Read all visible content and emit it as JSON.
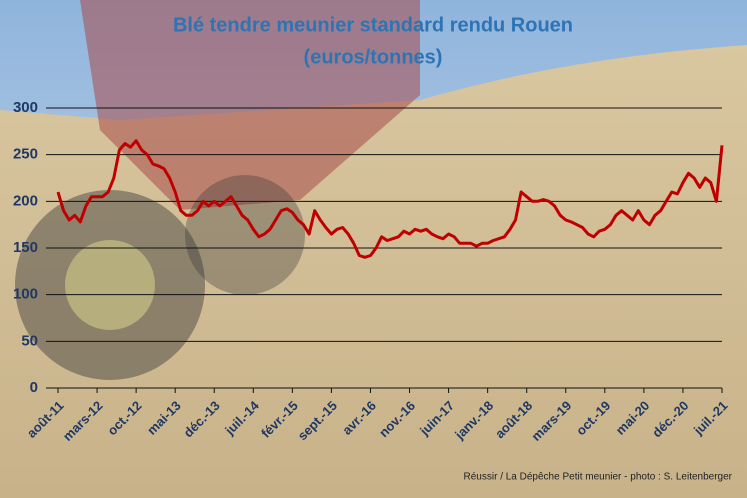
{
  "chart_data": {
    "type": "line",
    "title": "Blé tendre meunier standard rendu Rouen",
    "subtitle": "(euros/tonnes)",
    "source": "Réussir / La Dépêche Petit meunier - photo : S. Leitenberger",
    "categories": [
      "août-11",
      null,
      null,
      null,
      null,
      null,
      null,
      "mars-12",
      null,
      null,
      null,
      null,
      null,
      null,
      "oct.-12",
      null,
      null,
      null,
      null,
      null,
      null,
      "mai-13",
      null,
      null,
      null,
      null,
      null,
      null,
      "déc.-13",
      null,
      null,
      null,
      null,
      null,
      null,
      "juil.-14",
      null,
      null,
      null,
      null,
      null,
      null,
      "févr.-15",
      null,
      null,
      null,
      null,
      null,
      null,
      "sept.-15",
      null,
      null,
      null,
      null,
      null,
      null,
      "avr.-16",
      null,
      null,
      null,
      null,
      null,
      null,
      "nov.-16",
      null,
      null,
      null,
      null,
      null,
      null,
      "juin-17",
      null,
      null,
      null,
      null,
      null,
      null,
      "janv.-18",
      null,
      null,
      null,
      null,
      null,
      null,
      "août-18",
      null,
      null,
      null,
      null,
      null,
      null,
      "mars-19",
      null,
      null,
      null,
      null,
      null,
      null,
      "oct.-19",
      null,
      null,
      null,
      null,
      null,
      null,
      "mai-20",
      null,
      null,
      null,
      null,
      null,
      null,
      "déc.-20",
      null,
      null,
      null,
      null,
      null,
      null,
      "juil.-21"
    ],
    "values": [
      210,
      190,
      180,
      185,
      178,
      195,
      205,
      205,
      205,
      210,
      225,
      255,
      262,
      258,
      265,
      255,
      250,
      240,
      238,
      235,
      225,
      210,
      190,
      185,
      185,
      190,
      200,
      195,
      200,
      195,
      200,
      205,
      195,
      185,
      180,
      170,
      162,
      165,
      170,
      180,
      190,
      192,
      188,
      180,
      175,
      165,
      190,
      180,
      172,
      165,
      170,
      172,
      165,
      155,
      142,
      140,
      142,
      150,
      162,
      158,
      160,
      162,
      168,
      165,
      170,
      168,
      170,
      165,
      162,
      160,
      165,
      162,
      155,
      155,
      155,
      152,
      155,
      155,
      158,
      160,
      162,
      170,
      180,
      210,
      205,
      200,
      200,
      202,
      200,
      195,
      185,
      180,
      178,
      175,
      172,
      165,
      162,
      168,
      170,
      175,
      185,
      190,
      185,
      180,
      190,
      180,
      175,
      185,
      190,
      200,
      210,
      208,
      220,
      230,
      225,
      215,
      225,
      220,
      200,
      260
    ],
    "color": "#c00000",
    "ylim": [
      0,
      300
    ],
    "yticks": [
      0,
      50,
      100,
      150,
      200,
      250,
      300
    ],
    "grid": true
  }
}
